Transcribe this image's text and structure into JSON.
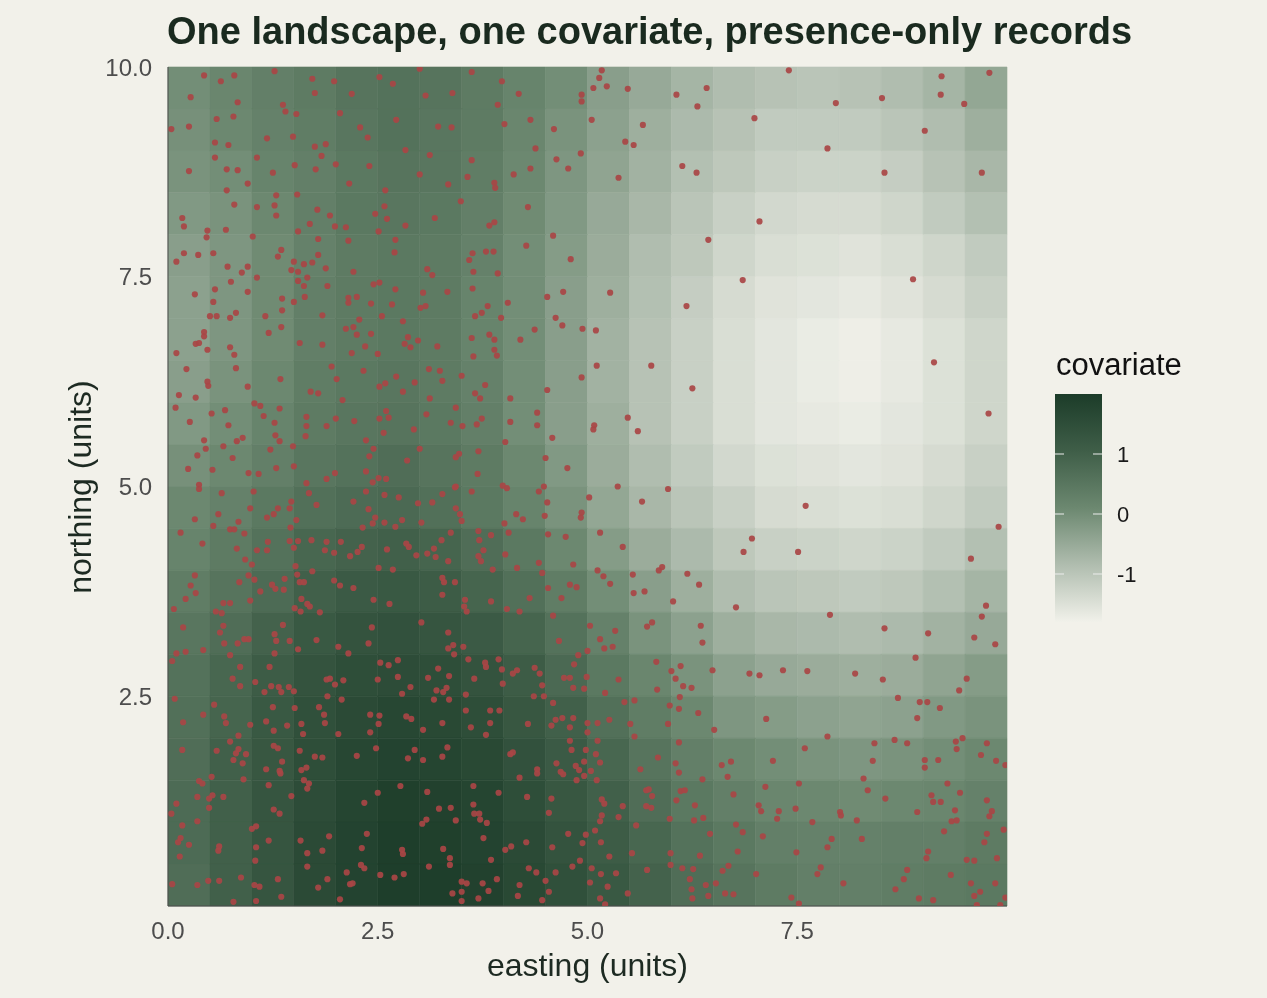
{
  "chart_data": {
    "type": "heatmap",
    "title": "One landscape, one covariate, presence-only records",
    "xlabel": "easting (units)",
    "ylabel": "northing (units)",
    "clabel": "covariate",
    "xlim": [
      0,
      10
    ],
    "ylim": [
      0,
      10
    ],
    "xticks": [
      {
        "value": 0,
        "label": "0.0"
      },
      2.5,
      {
        "value": 5,
        "label": "5.0"
      },
      7.5
    ],
    "yticks": [
      2.5,
      {
        "value": 5,
        "label": "5.0"
      },
      7.5,
      {
        "value": 10,
        "label": "10.0"
      }
    ],
    "clim": [
      -1.8,
      2.0
    ],
    "cticks": [
      -1,
      0,
      1
    ],
    "cells": [
      [
        0,
        0.15,
        0.3,
        0.4,
        0.55,
        0.6,
        0.55,
        0.4,
        0.2,
        0,
        -0.3,
        -0.5,
        -0.7,
        -0.85,
        -0.95,
        -1.0,
        -0.95,
        -0.85,
        -0.7,
        -0.45
      ],
      [
        -0.05,
        0.1,
        0.25,
        0.35,
        0.5,
        0.6,
        0.5,
        0.4,
        0.15,
        -0.1,
        -0.35,
        -0.6,
        -0.8,
        -0.95,
        -1.1,
        -1.1,
        -1.1,
        -1.0,
        -0.85,
        -0.6
      ],
      [
        -0.1,
        0,
        0.2,
        0.3,
        0.45,
        0.55,
        0.5,
        0.35,
        0.1,
        -0.15,
        -0.4,
        -0.65,
        -0.9,
        -1.05,
        -1.2,
        -1.25,
        -1.25,
        -1.15,
        -0.95,
        -0.75
      ],
      [
        -0.2,
        -0.1,
        0.1,
        0.3,
        0.45,
        0.5,
        0.45,
        0.3,
        0.05,
        -0.2,
        -0.5,
        -0.75,
        -1.0,
        -1.2,
        -1.35,
        -1.4,
        -1.4,
        -1.3,
        -1.1,
        -0.9
      ],
      [
        -0.3,
        -0.15,
        0.05,
        0.25,
        0.4,
        0.45,
        0.4,
        0.25,
        0,
        -0.25,
        -0.55,
        -0.85,
        -1.05,
        -1.3,
        -1.45,
        -1.5,
        -1.55,
        -1.45,
        -1.3,
        -1.1
      ],
      [
        -0.35,
        -0.15,
        0.05,
        0.3,
        0.4,
        0.45,
        0.4,
        0.2,
        0,
        -0.3,
        -0.6,
        -0.9,
        -1.15,
        -1.4,
        -1.55,
        -1.6,
        -1.65,
        -1.55,
        -1.4,
        -1.2
      ],
      [
        -0.35,
        -0.15,
        0.05,
        0.3,
        0.4,
        0.45,
        0.4,
        0.2,
        0,
        -0.3,
        -0.65,
        -0.95,
        -1.2,
        -1.45,
        -1.6,
        -1.7,
        -1.75,
        -1.65,
        -1.5,
        -1.3
      ],
      [
        -0.3,
        -0.1,
        0.1,
        0.35,
        0.45,
        0.5,
        0.4,
        0.25,
        0,
        -0.3,
        -0.65,
        -0.95,
        -1.2,
        -1.45,
        -1.6,
        -1.7,
        -1.75,
        -1.65,
        -1.5,
        -1.3
      ],
      [
        -0.2,
        0,
        0.2,
        0.4,
        0.5,
        0.55,
        0.45,
        0.3,
        0,
        -0.3,
        -0.6,
        -0.95,
        -1.2,
        -1.45,
        -1.6,
        -1.65,
        -1.7,
        -1.6,
        -1.5,
        -1.3
      ],
      [
        -0.05,
        0.1,
        0.3,
        0.5,
        0.6,
        0.7,
        0.55,
        0.4,
        0.1,
        -0.2,
        -0.55,
        -0.85,
        -1.1,
        -1.35,
        -1.5,
        -1.55,
        -1.6,
        -1.55,
        -1.4,
        -1.2
      ],
      [
        0.1,
        0.25,
        0.45,
        0.65,
        0.75,
        0.8,
        0.65,
        0.45,
        0.2,
        -0.1,
        -0.45,
        -0.75,
        -1.0,
        -1.2,
        -1.4,
        -1.45,
        -1.5,
        -1.45,
        -1.3,
        -1.1
      ],
      [
        0.2,
        0.4,
        0.6,
        0.85,
        0.95,
        1.0,
        0.9,
        0.7,
        0.45,
        0.1,
        -0.25,
        -0.55,
        -0.8,
        -1.05,
        -1.2,
        -1.25,
        -1.3,
        -1.25,
        -1.1,
        -0.9
      ],
      [
        0.35,
        0.55,
        0.75,
        1.0,
        1.15,
        1.2,
        1.1,
        0.9,
        0.65,
        0.35,
        0,
        -0.3,
        -0.6,
        -0.85,
        -1.0,
        -1.05,
        -1.1,
        -1.05,
        -0.9,
        -0.7
      ],
      [
        0.5,
        0.7,
        0.95,
        1.2,
        1.35,
        1.4,
        1.3,
        1.15,
        0.9,
        0.6,
        0.25,
        -0.1,
        -0.35,
        -0.6,
        -0.75,
        -0.8,
        -0.85,
        -0.8,
        -0.65,
        -0.5
      ],
      [
        0.6,
        0.85,
        1.1,
        1.35,
        1.5,
        1.55,
        1.5,
        1.35,
        1.1,
        0.8,
        0.45,
        0.15,
        -0.1,
        -0.35,
        -0.5,
        -0.55,
        -0.6,
        -0.55,
        -0.4,
        -0.25
      ],
      [
        0.65,
        0.9,
        1.2,
        1.45,
        1.6,
        1.7,
        1.65,
        1.5,
        1.25,
        1.0,
        0.65,
        0.35,
        0.1,
        -0.15,
        -0.25,
        -0.35,
        -0.4,
        -0.35,
        -0.2,
        -0.1
      ],
      [
        0.7,
        1.0,
        1.25,
        1.5,
        1.7,
        1.8,
        1.75,
        1.65,
        1.4,
        1.15,
        0.85,
        0.55,
        0.3,
        0.1,
        0,
        -0.1,
        -0.15,
        -0.1,
        0,
        0.1
      ],
      [
        0.75,
        1.0,
        1.3,
        1.55,
        1.75,
        1.9,
        1.85,
        1.75,
        1.5,
        1.25,
        1.0,
        0.7,
        0.45,
        0.3,
        0.15,
        0.1,
        0.05,
        0.1,
        0.15,
        0.25
      ],
      [
        0.75,
        1.0,
        1.3,
        1.6,
        1.8,
        1.95,
        1.9,
        1.8,
        1.6,
        1.35,
        1.1,
        0.85,
        0.6,
        0.45,
        0.3,
        0.25,
        0.25,
        0.3,
        0.3,
        0.4
      ],
      [
        0.7,
        1.0,
        1.3,
        1.6,
        1.8,
        1.95,
        1.95,
        1.85,
        1.65,
        1.45,
        1.2,
        0.95,
        0.7,
        0.55,
        0.4,
        0.3,
        0.3,
        0.35,
        0.4,
        0.45
      ]
    ],
    "marker": "circle",
    "series": [
      {
        "type": "scatter",
        "color": "#a94545",
        "x": [
          5.17,
          5.14,
          5.07,
          5.23,
          5.48,
          4.93,
          4.93,
          6.06,
          6.42,
          6.31,
          7.4,
          6.99,
          7.96,
          8.51,
          9.22,
          9.21,
          9.79,
          9.49,
          9.02,
          5.05,
          5.66,
          5.45,
          5.55,
          7.86,
          4.92,
          6.13,
          6.3,
          5.37,
          8.54,
          9.7,
          7.05,
          6.44,
          6.85,
          8.88,
          5.27,
          6.18,
          4.94,
          5.1,
          5.11,
          5.76,
          4.93,
          6.25,
          9.13,
          5.48,
          5.08,
          5.07,
          5.6,
          9.78,
          5.36,
          5.96,
          5.02,
          5.65,
          7.6,
          5.15,
          5.42,
          6.96,
          6.86,
          7.51,
          9.57,
          9.9,
          5.12,
          5.19,
          5.54,
          5.85,
          5.89,
          6.19,
          6.33,
          5.27,
          5.55,
          5.68,
          6.02,
          6.77,
          7.89,
          8.54,
          9.06,
          9.61,
          9.75,
          9.7,
          9.86,
          8.91,
          6.35,
          6.37,
          5.03,
          5.33,
          5.77,
          5.71,
          5.82,
          6.49,
          6.11,
          6.0,
          6.05,
          5.37,
          6.93,
          7.05,
          7.33,
          7.62,
          8.19,
          8.52,
          9.52,
          9.43,
          8.7,
          8.96,
          9.05,
          9.2,
          8.93,
          7.13,
          7.86,
          7.59,
          8.42,
          8.66,
          8.81,
          9.39,
          9.47,
          9.4,
          9.76,
          9.69,
          9.87,
          9.98,
          8.4,
          9.02,
          9.02,
          9.18,
          7.21,
          6.71,
          6.6,
          6.67,
          6.09,
          6.05,
          6.09,
          5.84,
          5.63,
          6.37,
          7.12,
          7.52,
          8.29,
          8.34,
          8.55,
          9.29,
          9.44,
          9.1,
          9.12,
          9.21,
          8.93,
          9.38,
          9.34,
          9.4,
          9.76,
          9.82,
          9.79,
          9.25,
          9.76,
          9.96,
          9.73,
          7.04,
          7.07,
          7.28,
          7.48,
          7.26,
          7.68,
          8.01,
          8.02,
          8.21,
          6.74,
          6.77,
          6.85,
          7.09,
          6.46,
          6.28,
          6.27,
          6.38,
          7.91,
          7.86,
          8.27,
          7.49,
          6.79,
          7.78,
          7.74,
          7.01,
          6.68,
          6.61,
          6.53,
          6.64,
          6.74,
          6.41,
          6.44,
          8.05,
          7.43,
          7.52,
          8.67,
          8.77,
          8.81,
          9.04,
          9.06,
          9.33,
          9.52,
          9.61,
          9.88,
          9.57,
          9.68,
          9.61,
          9.86,
          8.95,
          9.12,
          9.64,
          9.92,
          9.98,
          5.15,
          5.2,
          5.3,
          5.21,
          5.44,
          5.56,
          5.12,
          5.26,
          5.51,
          5.12,
          5.56,
          5.1,
          5.15,
          5.04,
          5.11,
          5.17,
          5.2,
          5.42,
          5.17,
          5.15,
          5.37,
          5.58,
          5.7,
          5.73,
          5.77,
          5.7,
          5.76,
          6.06,
          6.11,
          6.16,
          5.98,
          5.09,
          5.16,
          5.53,
          5.26,
          5.05,
          5.34,
          5.16,
          5.03,
          5.24,
          5.15,
          5.48,
          5.71,
          5.99,
          5.99,
          6.13,
          6.26,
          6.22,
          6.24,
          6.25,
          6.34,
          5.21,
          5.83,
          5.96,
          5.98,
          6.09,
          6.1,
          6.14,
          6.24,
          6.32,
          6.51,
          0.43,
          0.79,
          0.63,
          1.27,
          1.72,
          1.98,
          2.52,
          3.0,
          3.62,
          3.98,
          0.27,
          0.83,
          1.37,
          1.75,
          2.19,
          2.68,
          3.07,
          3.39,
          3.93,
          4.18,
          0.04,
          0.58,
          0.78,
          1.4,
          1.53,
          2.05,
          2.29,
          2.72,
          3.22,
          3.38,
          4.01,
          4.32,
          4.6,
          0.25,
          0.56,
          0.72,
          1.18,
          1.49,
          1.75,
          1.88,
          2.38,
          2.83,
          3.12,
          3.62,
          4.38,
          4.63,
          0.56,
          0.25,
          0.7,
          0.83,
          1.06,
          1.25,
          1.51,
          1.76,
          1.83,
          2.0,
          2.4,
          3.0,
          3.34,
          3.57,
          3.89,
          4.12,
          4.32,
          4.77,
          0.95,
          0.7,
          2.16,
          3.9,
          0.79,
          1.06,
          1.29,
          1.54,
          1.78,
          1.27,
          2.59,
          2.58,
          3.49,
          4.29,
          0.17,
          0.19,
          0.47,
          0.46,
          0.69,
          1.29,
          1.69,
          1.93,
          1.99,
          2.12,
          2.47,
          2.61,
          2.51,
          2.83,
          3.18,
          3.83,
          3.89,
          4.59,
          1.01,
          1.55,
          1.79,
          2.15,
          2.71,
          4.27,
          0.1,
          0.19,
          0.36,
          0.54,
          1.31,
          1.35,
          1.5,
          1.79,
          2.7,
          3.59,
          3.63,
          3.79,
          3.88,
          4.8,
          0.71,
          0.88,
          0.95,
          1.06,
          1.47,
          1.55,
          1.62,
          1.72,
          1.88,
          1.55,
          1.66,
          1.62,
          1.9,
          2.21,
          2.45,
          2.52,
          2.71,
          3.09,
          3.15,
          3.64,
          3.93,
          3.63,
          3.33,
          0.32,
          0.56,
          0.54,
          0.95,
          0.75,
          1.36,
          1.63,
          1.5,
          2.15,
          2.25,
          2.15,
          2.42,
          2.67,
          3.04,
          3.07,
          3.01,
          3.81,
          4.05,
          4.52,
          4.71,
          0.5,
          0.58,
          0.81,
          0.74,
          1.16,
          1.84,
          1.36,
          2.28,
          2.55,
          2.8,
          3.66,
          3.74,
          3.97,
          4.62,
          4.7,
          0.43,
          0.43,
          0.33,
          0.37,
          0.47,
          0.1,
          0.74,
          0.79,
          1.2,
          1.35,
          1.57,
          1.84,
          2.12,
          2.21,
          2.25,
          2.42,
          2.35,
          2.19,
          2.5,
          2.82,
          2.89,
          2.98,
          2.86,
          3.21,
          3.62,
          3.83,
          3.89,
          3.89,
          3.92,
          3.64,
          4.2,
          4.37,
          0.22,
          0.47,
          0.48,
          0.81,
          0.95,
          1.34,
          1.95,
          2.01,
          2.33,
          2.59,
          2.52,
          2.72,
          2.94,
          3.11,
          3.24,
          3.27,
          3.5,
          3.66,
          3.78,
          4.52,
          0.13,
          0.33,
          0.09,
          0.26,
          0.52,
          0.68,
          0.72,
          1.03,
          1.1,
          1.14,
          1.33,
          1.27,
          1.7,
          1.79,
          1.65,
          1.65,
          1.89,
          2.0,
          2.08,
          2.22,
          2.52,
          2.6,
          2.63,
          2.57,
          2.8,
          2.93,
          3.08,
          3.12,
          3.37,
          3.43,
          3.51,
          3.68,
          3.74,
          3.72,
          4.08,
          4.08,
          4.02,
          4.4,
          4.4,
          4.58,
          4.5,
          4.76,
          0.43,
          0.45,
          0.66,
          0.82,
          0.89,
          0.35,
          0.77,
          0.24,
          0.53,
          0.37,
          0.96,
          1.08,
          1.22,
          1.28,
          1.33,
          1.49,
          1.29,
          1.5,
          1.64,
          1.65,
          1.89,
          1.99,
          2.36,
          2.4,
          2.45,
          2.36,
          2.51,
          2.6,
          2.85,
          3.0,
          3.43,
          3.47,
          3.7,
          3.69,
          3.43,
          3.99,
          4.48,
          0.37,
          0.64,
          1.02,
          1.68,
          0.32,
          0.6,
          0.54,
          0.15,
          0.41,
          0.74,
          0.79,
          0.84,
          0.91,
          0.98,
          1.18,
          1.26,
          1.31,
          1.45,
          1.47,
          1.53,
          1.46,
          1.77,
          2.36,
          2.44,
          2.58,
          2.75,
          2.21,
          2.39,
          2.47,
          2.44,
          2.32,
          2.58,
          2.71,
          2.79,
          2.98,
          3.15,
          3.27,
          3.42,
          3.62,
          3.02,
          3.43,
          3.48,
          3.5,
          3.37,
          3.26,
          3.7,
          3.71,
          3.85,
          4.04,
          4.01,
          4.06,
          4.15,
          4.23,
          4.42,
          4.52,
          4.49,
          4.53,
          4.74,
          4.92,
          4.93,
          0.82,
          0.92,
          1.0,
          1.06,
          1.18,
          1.19,
          1.45,
          1.55,
          1.5,
          1.71,
          1.52,
          1.54,
          1.72,
          1.87,
          1.89,
          1.98,
          2.06,
          2.17,
          2.26,
          2.31,
          2.61,
          2.51,
          2.68,
          2.84,
          2.87,
          2.96,
          3.09,
          3.17,
          3.19,
          3.34,
          3.7,
          3.73,
          3.76,
          3.87,
          4.02,
          4.16,
          4.42,
          4.46,
          4.83,
          0.32,
          0.27,
          0.33,
          0.21,
          0.07,
          0.85,
          0.96,
          1.03,
          1.1,
          1.24,
          1.28,
          1.38,
          1.39,
          1.57,
          1.62,
          0.98,
          0.66,
          0.74,
          0.57,
          0.64,
          1.59,
          1.66,
          1.69,
          1.51,
          1.58,
          1.81,
          1.98,
          2.05,
          2.21,
          2.45,
          2.64,
          3.27,
          3.29,
          3.42,
          3.27,
          3.54,
          3.53,
          3.56,
          3.85,
          4.04,
          4.19,
          4.31,
          4.53,
          4.79,
          4.87,
          4.69,
          4.59,
          0.18,
          0.66,
          0.62,
          0.67,
          0.83,
          0.91,
          0.96,
          0.74,
          0.42,
          0.21,
          0.1,
          0.05,
          1.37,
          1.27,
          1.29,
          1.27,
          1.45,
          1.55,
          1.21,
          0.86,
          0.77,
          1.77,
          2.03,
          2.15,
          2.43,
          2.39,
          3.02,
          3.34,
          3.34,
          3.4,
          3.41,
          3.52,
          3.58,
          2.53,
          2.63,
          2.74,
          3.22,
          3.35,
          3.1,
          2.74,
          2.5,
          3.65,
          3.79,
          3.78,
          3.94,
          3.98,
          4.11,
          4.16,
          3.99,
          4.37,
          4.43,
          4.46,
          4.66,
          4.89,
          4.84,
          5.0,
          4.72,
          4.79,
          4.99,
          1.89,
          1.93,
          2.09,
          1.99,
          1.04,
          1.23,
          1.32,
          1.44,
          1.5,
          1.35,
          1.15,
          0.86,
          0.08,
          0.55,
          0.42,
          0.67,
          0.69,
          0.18,
          0.98,
          1.17,
          1.25,
          1.51,
          1.42,
          1.59,
          1.8,
          1.9,
          2.07,
          1.86,
          1.87,
          1.26,
          1.61,
          2.03,
          2.79,
          2.89,
          3.2,
          3.28,
          3.32,
          3.17,
          3.35,
          3.55,
          3.55,
          2.41,
          2.52,
          2.51,
          2.41,
          2.84,
          2.9,
          3.04,
          3.27,
          3.61,
          3.84,
          3.95,
          3.84,
          3.79,
          4.29,
          4.57,
          4.62,
          4.7,
          4.83,
          4.79,
          5.0,
          5.0,
          4.59,
          4.36,
          4.48,
          4.83,
          4.96,
          4.79,
          0.17,
          0.58,
          0.74,
          0.84,
          0.84,
          0.81,
          0.93,
          0.78,
          0.89,
          1.26,
          1.31,
          1.57,
          1.36,
          1.17,
          1.33,
          1.34,
          1.2,
          1.59,
          1.65,
          1.62,
          1.68,
          1.66,
          1.47,
          1.75,
          1.84,
          2.25,
          2.48,
          2.86,
          2.94,
          3.04,
          3.27,
          3.33,
          4.11,
          4.08,
          4.19,
          4.4,
          4.4,
          4.63,
          4.68,
          4.71,
          4.86,
          4.9,
          4.96,
          4.87,
          4.96,
          4.81,
          4.98,
          0.37,
          0.41,
          0.52,
          0.35,
          0.49,
          0.53,
          0.66,
          0.49,
          0.9,
          0.1,
          0.04,
          2.5,
          2.77,
          3.09,
          2.34,
          3.64,
          3.64,
          3.65,
          3.71,
          3.72,
          3.8,
          3.94,
          4.28,
          4.57,
          4.54,
          3.23,
          3.37,
          3.43,
          1.26,
          1.33,
          0.17,
          0.35,
          0.15,
          0.12,
          0.25,
          0.14,
          0.61,
          0.6,
          1.0,
          1.05,
          1.2,
          1.05,
          1.04,
          1.58,
          1.66,
          1.66,
          1.84,
          1.92,
          2.37,
          2.31,
          2.3,
          2.34,
          2.13,
          1.9,
          1.79,
          2.17,
          2.2,
          2.05,
          2.53,
          2.7,
          2.81,
          2.79,
          2.8,
          3.11,
          3.03,
          3.08,
          3.28,
          3.36,
          3.36,
          3.5,
          3.56,
          3.39,
          3.5,
          3.5,
          3.7,
          3.75,
          3.82,
          3.85,
          3.76,
          3.92,
          4.02,
          4.09,
          4.27,
          4.3,
          4.39,
          4.19,
          4.17,
          4.46,
          4.5,
          4.54,
          4.62,
          4.58,
          4.77,
          4.94,
          4.91,
          4.82,
          4.98,
          0.05,
          0.35,
          0.48,
          0.61,
          0.87,
          0.78,
          1.03,
          1.09,
          1.05,
          1.31,
          1.35
        ],
        "values": [
          9.96,
          9.87,
          9.75,
          9.77,
          9.74,
          9.67,
          9.59,
          9.67,
          9.75,
          9.53,
          9.96,
          9.39,
          9.57,
          9.63,
          9.89,
          9.67,
          9.93,
          9.56,
          9.24,
          9.37,
          9.31,
          9.11,
          9.07,
          9.03,
          8.97,
          8.82,
          8.74,
          8.68,
          8.74,
          8.74,
          8.16,
          7.94,
          7.46,
          7.47,
          7.31,
          7.15,
          6.88,
          6.86,
          6.44,
          6.44,
          6.3,
          6.17,
          6.48,
          5.82,
          5.73,
          5.68,
          5.66,
          5.87,
          5.0,
          4.97,
          4.87,
          4.82,
          4.77,
          4.45,
          4.28,
          4.38,
          4.22,
          4.22,
          4.14,
          4.52,
          4.0,
          3.93,
          3.95,
          4.0,
          4.04,
          3.96,
          3.83,
          3.84,
          3.73,
          3.75,
          3.63,
          3.56,
          3.47,
          3.31,
          3.25,
          3.2,
          3.58,
          3.45,
          3.12,
          2.96,
          3.34,
          3.14,
          3.34,
          3.28,
          3.38,
          3.33,
          2.91,
          2.81,
          2.86,
          2.8,
          2.71,
          2.7,
          2.77,
          2.75,
          2.81,
          2.8,
          2.77,
          2.7,
          2.71,
          2.57,
          2.48,
          2.43,
          2.43,
          2.36,
          2.24,
          2.23,
          2.02,
          1.88,
          1.94,
          1.98,
          1.94,
          1.96,
          2.0,
          1.87,
          1.94,
          1.8,
          1.73,
          1.68,
          1.73,
          1.74,
          1.65,
          1.74,
          1.73,
          1.72,
          1.68,
          1.54,
          1.95,
          1.7,
          1.59,
          1.77,
          1.63,
          1.51,
          1.42,
          1.46,
          1.52,
          1.38,
          1.28,
          1.46,
          1.35,
          1.32,
          1.24,
          1.24,
          1.12,
          1.14,
          1.01,
          1.02,
          1.26,
          1.13,
          1.07,
          0.89,
          0.86,
          0.91,
          0.76,
          1.2,
          1.13,
          1.13,
          1.16,
          1.04,
          1.0,
          1.12,
          1.08,
          1.02,
          1.33,
          0.97,
          0.88,
          0.83,
          0.86,
          1.2,
          1.02,
          1.05,
          0.8,
          0.7,
          0.8,
          0.64,
          0.65,
          0.46,
          0.38,
          0.38,
          0.48,
          0.42,
          0.27,
          0.15,
          0.14,
          0.25,
          0.12,
          0.27,
          0.1,
          0.03,
          0.2,
          0.32,
          0.43,
          0.57,
          0.65,
          0.37,
          0.55,
          0.54,
          0.57,
          0.27,
          0.17,
          0.12,
          0.27,
          0.09,
          0.07,
          0.01,
          0.01,
          0.1,
          3.18,
          3.07,
          3.09,
          2.54,
          2.43,
          2.45,
          2.18,
          2.22,
          2.17,
          1.97,
          2.02,
          1.81,
          1.71,
          1.61,
          1.5,
          1.27,
          1.22,
          1.19,
          1.08,
          1.01,
          1.06,
          0.96,
          1.38,
          1.39,
          1.31,
          1.19,
          1.17,
          1.26,
          1.37,
          1.38,
          1.04,
          0.9,
          0.76,
          0.63,
          0.59,
          0.45,
          0.39,
          0.38,
          0.28,
          0.23,
          0.09,
          0.15,
          0.43,
          0.63,
          0.49,
          0.45,
          0.44,
          0.32,
          0.2,
          0.09,
          0.6,
          0.02,
          2.58,
          2.17,
          2.39,
          2.35,
          2.49,
          2.62,
          2.6,
          2.3,
          2.1,
          9.9,
          9.9,
          9.83,
          9.95,
          9.86,
          9.83,
          9.88,
          9.98,
          9.94,
          9.83,
          9.64,
          9.58,
          9.55,
          9.69,
          9.68,
          9.8,
          9.66,
          9.69,
          9.55,
          9.68,
          9.26,
          9.38,
          9.41,
          9.47,
          9.44,
          9.45,
          9.28,
          9.37,
          9.29,
          9.28,
          9.32,
          9.37,
          9.26,
          9.29,
          9.1,
          9.07,
          9.15,
          9.17,
          9.05,
          9.08,
          9.16,
          9.01,
          8.95,
          8.89,
          9.03,
          8.9,
          8.92,
          8.76,
          8.78,
          8.77,
          8.92,
          8.74,
          8.83,
          8.78,
          8.94,
          8.84,
          8.82,
          8.72,
          8.6,
          8.69,
          8.62,
          8.72,
          8.79,
          8.79,
          8.61,
          8.53,
          8.61,
          8.56,
          8.36,
          8.33,
          8.47,
          8.48,
          8.3,
          8.35,
          8.53,
          8.34,
          8.4,
          8.33,
          8.2,
          8.1,
          8.05,
          7.97,
          8.06,
          8.23,
          8.13,
          8.23,
          8.1,
          8.09,
          8.25,
          8.19,
          8.04,
          8.11,
          8.2,
          8.11,
          8.15,
          7.99,
          7.98,
          8.04,
          7.95,
          7.93,
          7.94,
          7.87,
          7.68,
          7.78,
          7.76,
          7.78,
          7.74,
          7.82,
          7.68,
          7.76,
          7.79,
          7.7,
          7.78,
          7.8,
          7.8,
          7.71,
          7.62,
          7.55,
          7.62,
          7.49,
          7.58,
          7.56,
          7.65,
          7.67,
          7.6,
          7.45,
          7.49,
          7.39,
          7.39,
          7.56,
          7.41,
          7.43,
          7.35,
          7.59,
          7.52,
          7.56,
          7.54,
          7.36,
          7.32,
          7.29,
          7.35,
          7.2,
          7.32,
          7.44,
          7.24,
          7.26,
          7.2,
          7.25,
          7.26,
          7.19,
          7.18,
          7.17,
          7.31,
          7.15,
          7.13,
          7.15,
          7.19,
          7.26,
          7.32,
          7.03,
          7.03,
          7.07,
          7.01,
          7.03,
          7.04,
          7.1,
          6.99,
          7.03,
          6.97,
          7.03,
          7.07,
          7.01,
          7.01,
          6.92,
          6.84,
          6.79,
          6.7,
          6.71,
          6.63,
          6.59,
          6.66,
          6.57,
          6.83,
          6.9,
          6.71,
          6.69,
          6.88,
          6.9,
          6.81,
          6.82,
          6.67,
          6.59,
          6.58,
          6.7,
          6.66,
          6.74,
          6.78,
          6.67,
          6.77,
          6.81,
          6.75,
          6.63,
          6.56,
          6.55,
          6.75,
          6.87,
          6.4,
          6.25,
          6.2,
          6.41,
          6.19,
          6.28,
          6.43,
          6.28,
          6.38,
          6.23,
          6.19,
          6.31,
          6.24,
          6.4,
          6.38,
          6.26,
          6.32,
          6.11,
          6.21,
          6.15,
          6.09,
          6.06,
          5.94,
          5.77,
          5.87,
          5.91,
          5.73,
          5.99,
          5.96,
          5.84,
          5.93,
          5.76,
          6.13,
          6.11,
          5.83,
          5.72,
          5.72,
          5.81,
          6.03,
          5.78,
          5.81,
          5.9,
          5.82,
          5.64,
          6.13,
          5.68,
          5.86,
          6.05,
          5.76,
          5.94,
          5.72,
          5.74,
          5.81,
          6.05,
          6.05,
          5.77,
          5.53,
          5.88,
          5.73,
          5.58,
          5.34,
          5.22,
          5.55,
          5.45,
          5.48,
          5.54,
          5.58,
          5.37,
          5.34,
          5.21,
          5.2,
          5.02,
          5.16,
          5.15,
          5.44,
          5.61,
          5.54,
          5.48,
          5.22,
          5.24,
          5.6,
          5.04,
          5.09,
          5.16,
          5.55,
          5.36,
          5.45,
          5.18,
          5.1,
          5.09,
          5.31,
          5.45,
          5.35,
          5.39,
          5.42,
          5.15,
          5.0,
          5.01,
          5.0,
          4.97,
          4.92,
          4.94,
          4.92,
          4.61,
          4.67,
          4.53,
          4.45,
          4.32,
          4.49,
          4.49,
          4.58,
          4.44,
          4.74,
          4.63,
          4.67,
          4.74,
          4.74,
          4.82,
          4.6,
          4.51,
          4.78,
          4.94,
          5.05,
          4.9,
          4.87,
          4.82,
          4.73,
          4.63,
          4.56,
          4.51,
          4.57,
          4.52,
          4.6,
          4.8,
          4.81,
          4.91,
          4.99,
          4.94,
          4.57,
          4.74,
          4.67,
          4.59,
          4.45,
          4.36,
          4.47,
          4.36,
          4.42,
          4.98,
          4.56,
          4.45,
          4.67,
          4.61,
          4.94,
          4.81,
          4.65,
          4.43,
          4.4,
          4.63,
          4.69,
          4.26,
          4.13,
          4.07,
          4.24,
          4.24,
          4.34,
          4.35,
          4.35,
          4.27,
          4.36,
          4.05,
          3.95,
          3.99,
          4.24,
          4.34,
          4.21,
          4.34,
          4.17,
          4.22,
          4.28,
          4.25,
          4.03,
          4.01,
          4.32,
          4.28,
          4.18,
          4.2,
          4.26,
          4.16,
          4.11,
          4.17,
          4.11,
          4.24,
          4.01,
          4.19,
          4.03,
          4.09,
          3.97,
          4.07,
          3.94,
          3.82,
          3.73,
          3.66,
          3.54,
          3.86,
          3.94,
          3.89,
          3.75,
          3.83,
          3.78,
          3.77,
          3.9,
          3.86,
          3.86,
          3.64,
          3.61,
          3.61,
          3.51,
          3.49,
          3.66,
          3.6,
          3.57,
          3.55,
          3.51,
          3.5,
          3.88,
          3.82,
          3.79,
          3.65,
          3.6,
          3.91,
          3.86,
          3.86,
          3.71,
          3.65,
          3.57,
          3.51,
          3.63,
          3.54,
          3.51,
          3.67,
          3.79,
          3.83,
          3.8,
          3.67,
          3.46,
          3.32,
          3.34,
          3.26,
          3.13,
          3.13,
          3.18,
          3.18,
          2.99,
          3.05,
          3.03,
          3.01,
          2.92,
          3.35,
          3.24,
          3.16,
          3.01,
          3.16,
          3.06,
          2.85,
          2.85,
          2.71,
          3.17,
          3.09,
          3.01,
          3.32,
          3.13,
          3.38,
          3.26,
          3.07,
          3.11,
          3.0,
          3.09,
          2.94,
          2.9,
          2.87,
          2.93,
          2.83,
          2.74,
          2.72,
          2.73,
          2.7,
          2.71,
          2.85,
          2.9,
          2.94,
          2.82,
          2.77,
          2.81,
          2.65,
          2.84,
          2.77,
          2.63,
          3.16,
          2.99,
          2.88,
          3.04,
          2.72,
          2.72,
          2.73,
          2.7,
          2.71,
          2.69,
          2.64,
          2.67,
          2.62,
          2.61,
          2.61,
          2.56,
          2.55,
          2.55,
          2.62,
          2.47,
          2.4,
          2.28,
          2.26,
          2.18,
          2.19,
          2.16,
          2.2,
          2.37,
          2.36,
          2.15,
          2.17,
          2.37,
          2.5,
          2.46,
          2.28,
          2.18,
          2.09,
          2.05,
          2.05,
          2.53,
          2.61,
          2.57,
          2.55,
          2.6,
          2.46,
          2.46,
          2.52,
          2.33,
          2.28,
          2.27,
          2.17,
          2.07,
          2.26,
          2.23,
          2.1,
          2.18,
          2.13,
          2.33,
          2.33,
          2.18,
          2.04,
          2.17,
          2.15,
          2.22,
          2.24,
          2.24,
          2.13,
          2.18,
          2.07,
          2.42,
          2.5,
          2.5,
          2.6,
          2.59,
          1.97,
          1.86,
          1.85,
          1.96,
          2.03,
          1.87,
          1.82,
          1.81,
          1.74,
          1.7,
          1.91,
          1.88,
          1.85,
          1.72,
          1.63,
          1.61,
          1.58,
          1.44,
          1.62,
          1.65,
          1.5,
          1.46,
          1.4,
          1.31,
          1.78,
          1.77,
          1.79,
          1.88,
          1.76,
          1.86,
          1.74,
          1.78,
          1.89,
          1.83,
          1.81,
          1.53,
          1.63,
          1.58,
          1.7,
          1.6,
          1.57,
          1.67,
          1.62,
          1.55,
          1.5,
          1.72,
          1.86,
          1.86,
          1.49,
          1.46,
          1.54,
          1.3,
          1.28,
          1.32,
          1.3,
          1.17,
          1.51,
          1.22,
          1.1,
          1.35,
          1.43,
          1.36,
          1.23,
          1.43,
          1.21,
          1.1,
          1.1,
          1.03,
          0.99,
          1.35,
          1.3,
          1.28,
          1.11,
          1.16,
          1.17,
          1.02,
          1.15,
          1.1,
          0.96,
          1.01,
          0.81,
          0.76,
          0.73,
          0.59,
          0.71,
          0.66,
          0.92,
          0.95,
          0.78,
          0.7,
          0.54,
          0.78,
          0.63,
          0.47,
          0.66,
          0.83,
          0.86,
          0.69,
          0.49,
          0.45,
          0.4,
          0.32,
          0.22,
          0.26,
          0.27,
          0.08,
          0.37,
          0.34,
          0.38,
          0.67,
          0.62,
          0.47,
          0.98,
          1.03,
          0.68,
          0.57,
          0.49,
          0.29,
          0.27,
          0.15,
          0.17,
          0.06,
          0.09,
          0.27,
          0.18,
          0.55,
          0.81,
          0.32,
          0.67,
          0.71,
          0.76,
          0.45,
          0.4,
          0.25,
          0.12,
          0.07,
          0.3,
          0.17,
          0.4,
          0.7,
          0.86,
          0.75,
          0.54,
          0.47,
          0.85,
          0.26,
          0.25,
          0.3,
          0.3,
          0.34,
          0.05,
          0.25,
          0.23,
          0.06,
          0.32,
          0.11
        ]
      }
    ]
  }
}
